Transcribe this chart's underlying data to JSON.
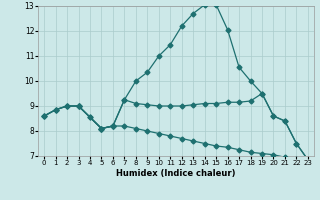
{
  "xlabel": "Humidex (Indice chaleur)",
  "bg_color": "#cce8e8",
  "grid_color": "#aacccc",
  "line_color": "#1e7070",
  "xlim_min": -0.5,
  "xlim_max": 23.5,
  "ylim_min": 7,
  "ylim_max": 13,
  "xticks": [
    0,
    1,
    2,
    3,
    4,
    5,
    6,
    7,
    8,
    9,
    10,
    11,
    12,
    13,
    14,
    15,
    16,
    17,
    18,
    19,
    20,
    21,
    22,
    23
  ],
  "yticks": [
    7,
    8,
    9,
    10,
    11,
    12,
    13
  ],
  "curves": [
    {
      "x": [
        0,
        1,
        2,
        3,
        4,
        5,
        6,
        7,
        8,
        9,
        10,
        11,
        12,
        13,
        14,
        15,
        16,
        17,
        18,
        19,
        20,
        21,
        22,
        23
      ],
      "y": [
        8.6,
        8.85,
        9.0,
        9.0,
        8.55,
        8.1,
        8.2,
        9.25,
        10.0,
        10.35,
        11.0,
        11.45,
        12.2,
        12.7,
        13.05,
        13.05,
        12.05,
        10.55,
        10.0,
        9.5,
        8.6,
        8.4,
        7.5,
        6.85
      ]
    },
    {
      "x": [
        0,
        1,
        2,
        3,
        5,
        6,
        7,
        8,
        9,
        10,
        11,
        12,
        13,
        14,
        15,
        16,
        17,
        18,
        19,
        20,
        21,
        22,
        23
      ],
      "y": [
        8.6,
        8.85,
        9.0,
        9.0,
        8.1,
        8.2,
        9.25,
        9.1,
        9.05,
        9.0,
        9.0,
        9.0,
        9.05,
        9.1,
        9.1,
        9.15,
        9.15,
        9.2,
        9.5,
        8.6,
        8.4,
        7.5,
        6.85
      ]
    },
    {
      "x": [
        0,
        1,
        2,
        3,
        5,
        6,
        7,
        8,
        9,
        10,
        11,
        12,
        13,
        14,
        15,
        16,
        17,
        18,
        19,
        20,
        21,
        22,
        23
      ],
      "y": [
        8.6,
        8.85,
        9.0,
        9.0,
        8.1,
        8.2,
        8.2,
        8.1,
        8.0,
        7.9,
        7.8,
        7.7,
        7.6,
        7.5,
        7.4,
        7.35,
        7.25,
        7.15,
        7.1,
        7.05,
        6.95,
        6.9,
        6.85
      ]
    },
    {
      "x": [
        3,
        4,
        5,
        6
      ],
      "y": [
        9.0,
        8.55,
        8.1,
        8.2
      ]
    }
  ]
}
